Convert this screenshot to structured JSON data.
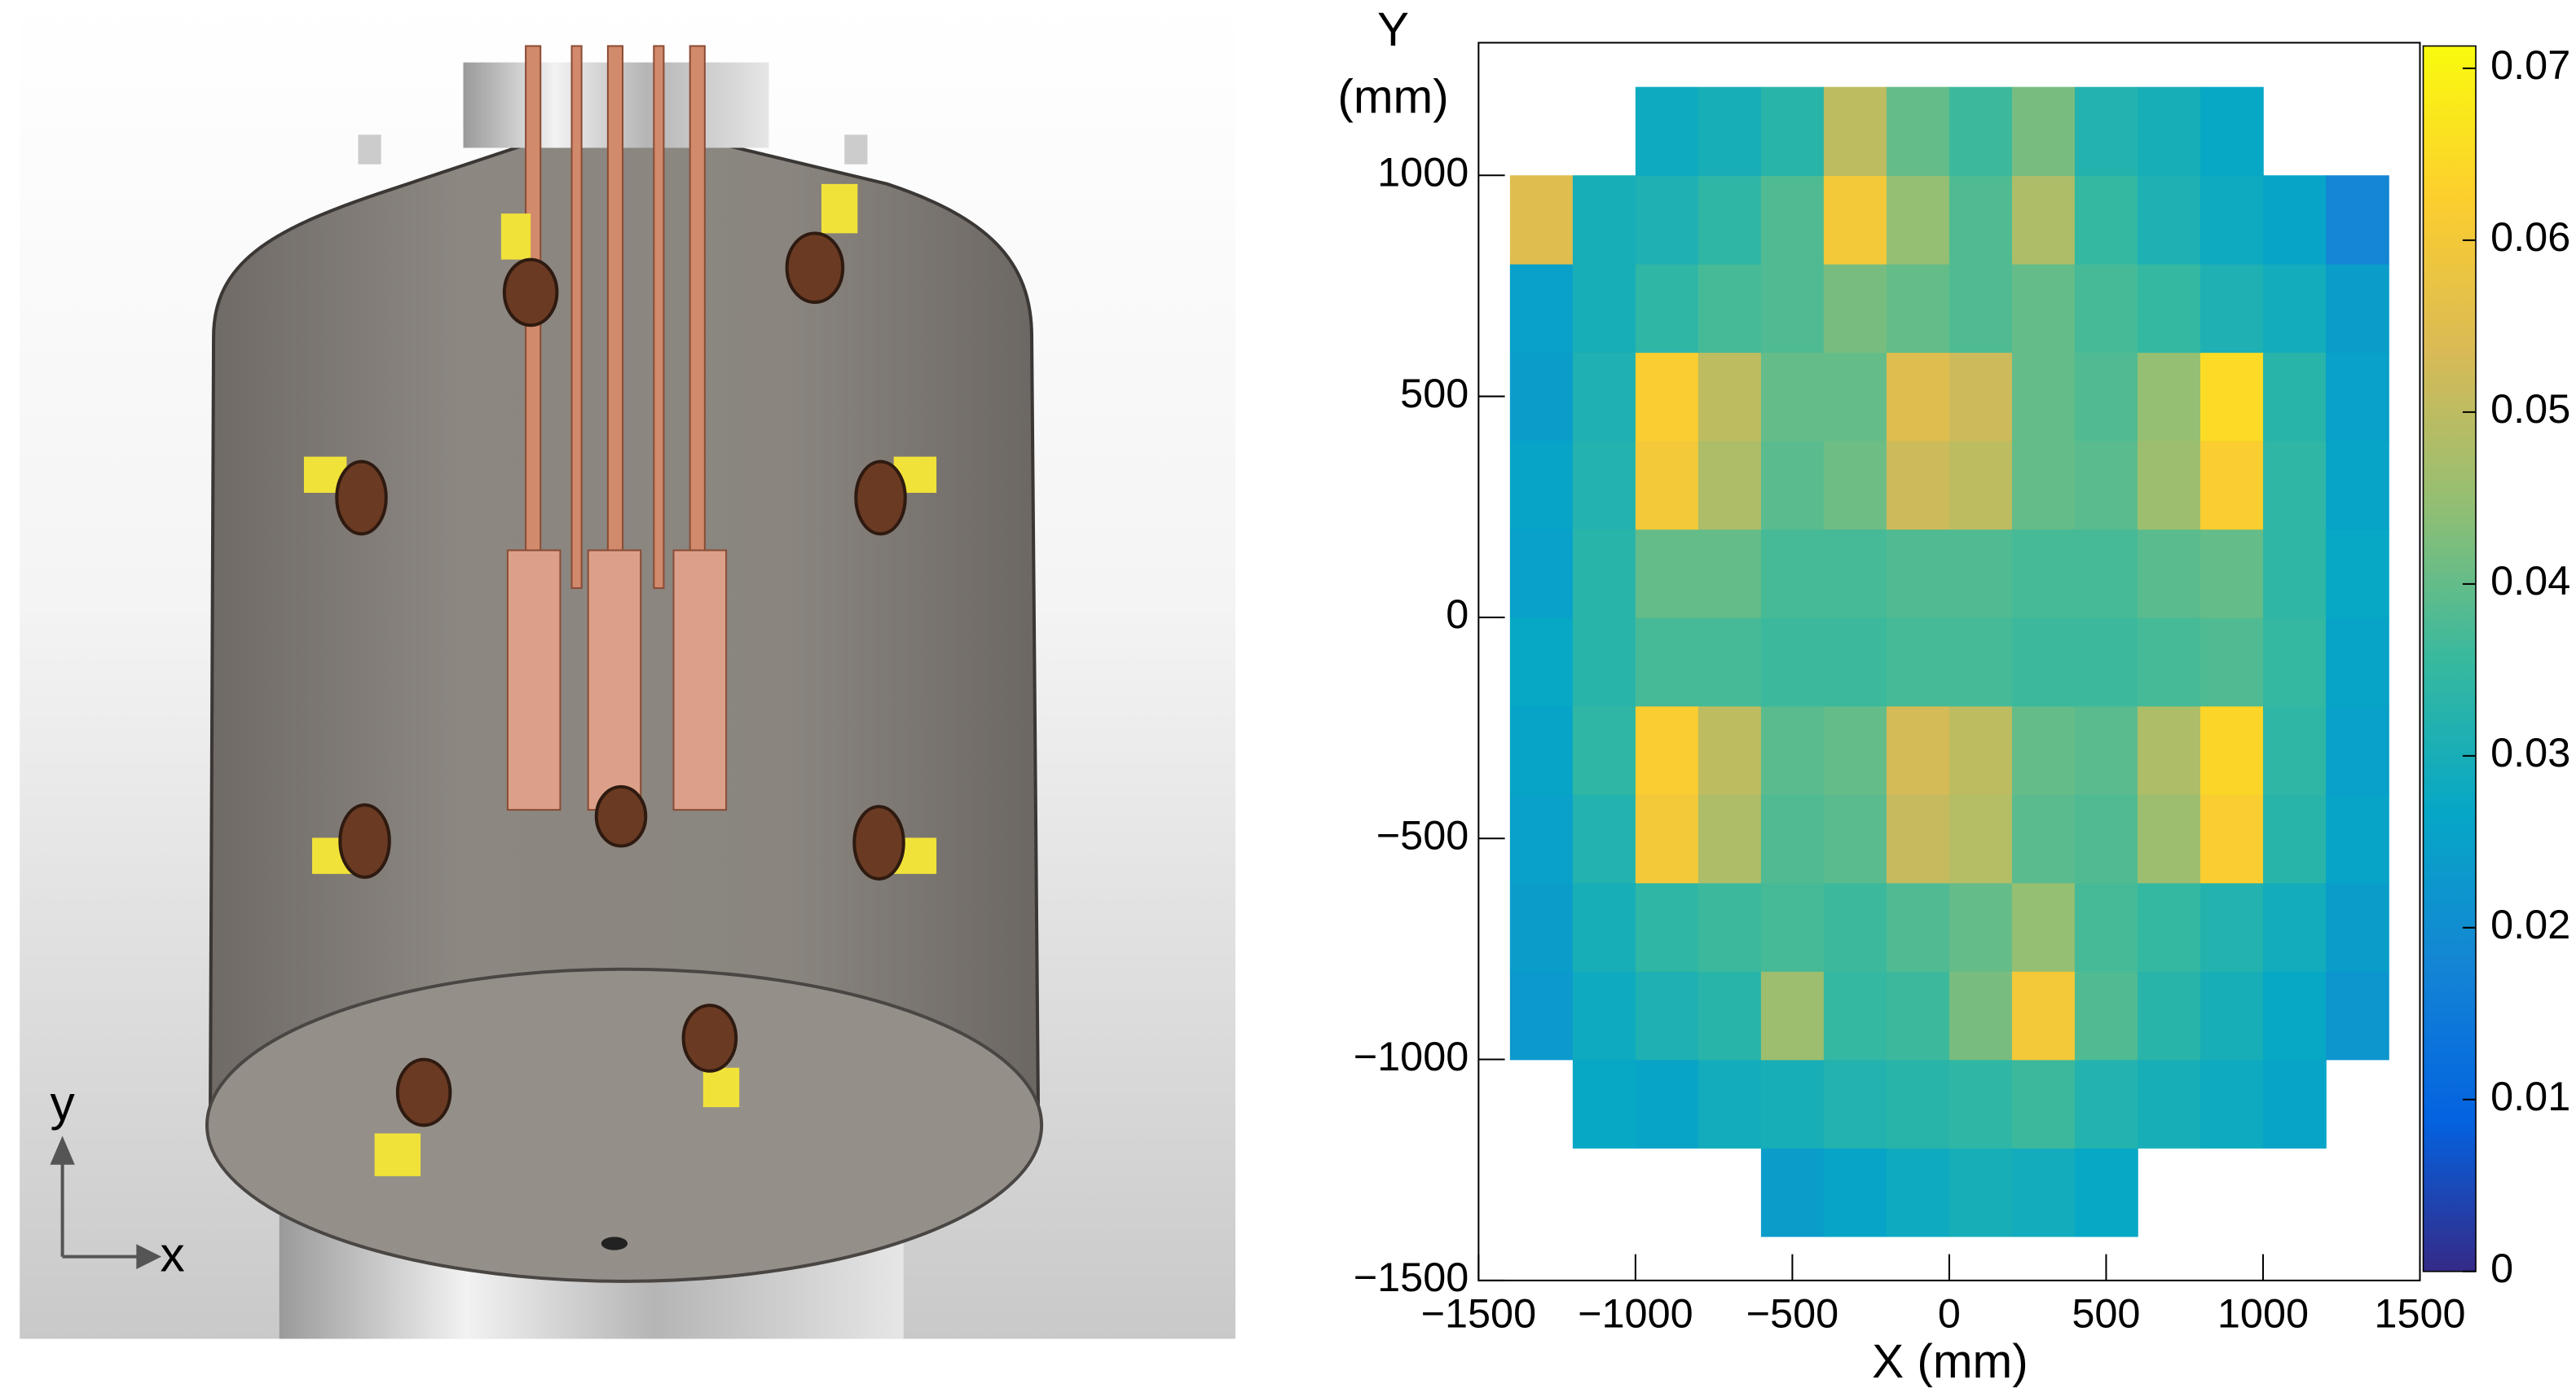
{
  "render": {
    "axis_labels": {
      "x": "x",
      "y": "y"
    }
  },
  "chart_data": {
    "type": "heatmap",
    "xlabel": "X (mm)",
    "ylabel_lines": [
      "Y",
      "(mm)"
    ],
    "xlim": [
      -1500,
      1500
    ],
    "ylim": [
      -1500,
      1300
    ],
    "xticks": [
      {
        "value": -1500,
        "label": "−1500"
      },
      {
        "value": -1000,
        "label": "−1000"
      },
      {
        "value": -500,
        "label": "−500"
      },
      0,
      500,
      1000,
      1500
    ],
    "yticks": [
      {
        "value": -1500,
        "label": "−1500"
      },
      {
        "value": -1000,
        "label": "−1000"
      },
      {
        "value": -500,
        "label": "−500"
      },
      0,
      500,
      1000
    ],
    "zlim": [
      0,
      0.0713
    ],
    "zticks": [
      0,
      0.01,
      0.02,
      0.03,
      0.04,
      0.05,
      0.06,
      0.07
    ],
    "palette": [
      "#352a87",
      "#0363e1",
      "#1485d4",
      "#06a7c6",
      "#38b99e",
      "#92bf73",
      "#d9ba56",
      "#fcce2e",
      "#f9fb0e"
    ],
    "xbins": [
      -1400,
      -1200,
      -1000,
      -800,
      -600,
      -400,
      -200,
      0,
      200,
      400,
      600,
      800,
      1000,
      1200,
      1400
    ],
    "ybins": [
      -1400,
      -1200,
      -1000,
      -800,
      -600,
      -400,
      -200,
      0,
      200,
      400,
      600,
      800,
      1000,
      1200
    ],
    "values": [
      [
        null,
        null,
        null,
        null,
        0.024,
        0.026,
        0.028,
        0.03,
        0.029,
        0.027,
        null,
        null,
        null,
        null
      ],
      [
        null,
        0.027,
        0.026,
        0.029,
        0.03,
        0.032,
        0.033,
        0.034,
        0.036,
        0.032,
        0.03,
        0.028,
        0.026,
        null
      ],
      [
        0.023,
        0.028,
        0.031,
        0.033,
        0.046,
        0.035,
        0.036,
        0.042,
        0.06,
        0.038,
        0.033,
        0.03,
        0.027,
        0.022
      ],
      [
        0.024,
        0.03,
        0.034,
        0.036,
        0.037,
        0.036,
        0.038,
        0.04,
        0.045,
        0.037,
        0.035,
        0.032,
        0.029,
        0.024
      ],
      [
        0.025,
        0.032,
        0.06,
        0.048,
        0.038,
        0.039,
        0.051,
        0.049,
        0.039,
        0.038,
        0.046,
        0.062,
        0.033,
        0.026
      ],
      [
        0.026,
        0.034,
        0.062,
        0.05,
        0.039,
        0.04,
        0.053,
        0.05,
        0.04,
        0.039,
        0.048,
        0.064,
        0.034,
        0.025
      ],
      [
        0.027,
        0.033,
        0.037,
        0.037,
        0.036,
        0.036,
        0.037,
        0.037,
        0.036,
        0.036,
        0.037,
        0.038,
        0.035,
        0.026
      ],
      [
        0.025,
        0.033,
        0.04,
        0.04,
        0.037,
        0.037,
        0.038,
        0.038,
        0.037,
        0.037,
        0.039,
        0.04,
        0.034,
        0.027
      ],
      [
        0.026,
        0.032,
        0.06,
        0.048,
        0.039,
        0.041,
        0.052,
        0.05,
        0.04,
        0.039,
        0.046,
        0.062,
        0.034,
        0.026
      ],
      [
        0.024,
        0.031,
        0.062,
        0.05,
        0.04,
        0.04,
        0.055,
        0.052,
        0.04,
        0.038,
        0.045,
        0.065,
        0.033,
        0.025
      ],
      [
        0.025,
        0.03,
        0.034,
        0.037,
        0.038,
        0.042,
        0.04,
        0.038,
        0.04,
        0.037,
        0.035,
        0.031,
        0.029,
        0.024
      ],
      [
        0.055,
        0.03,
        0.031,
        0.034,
        0.038,
        0.06,
        0.045,
        0.038,
        0.048,
        0.035,
        0.031,
        0.028,
        0.026,
        0.018
      ],
      [
        null,
        null,
        0.028,
        0.03,
        0.033,
        0.05,
        0.04,
        0.036,
        0.042,
        0.032,
        0.03,
        0.027,
        null,
        null
      ]
    ]
  }
}
